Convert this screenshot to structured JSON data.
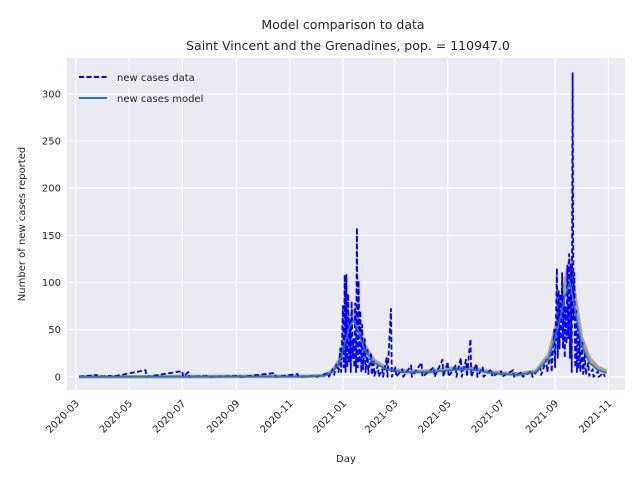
{
  "chart_data": {
    "type": "line",
    "title": "Model comparison to data",
    "subtitle": "Saint Vincent and the Grenadines, pop. = 110947.0",
    "xlabel": "Day",
    "ylabel": "Number of new cases reported",
    "xlim": [
      "2020-02-20",
      "2021-11-20"
    ],
    "ylim": [
      -14,
      338
    ],
    "grid": true,
    "legend_position": "top-left",
    "x_ticks": [
      "2020-03",
      "2020-05",
      "2020-07",
      "2020-09",
      "2020-11",
      "2021-01",
      "2021-03",
      "2021-05",
      "2021-07",
      "2021-09",
      "2021-11"
    ],
    "y_ticks": [
      0,
      50,
      100,
      150,
      200,
      250,
      300
    ],
    "series": [
      {
        "name": "new cases data",
        "style": "dashed",
        "color": "#0000ff",
        "points": [
          [
            "2020-03-05",
            0
          ],
          [
            "2020-03-25",
            2
          ],
          [
            "2020-03-26",
            0
          ],
          [
            "2020-04-10",
            1
          ],
          [
            "2020-04-11",
            0
          ],
          [
            "2020-05-20",
            7
          ],
          [
            "2020-05-21",
            0
          ],
          [
            "2020-07-01",
            6
          ],
          [
            "2020-07-02",
            0
          ],
          [
            "2020-07-08",
            5
          ],
          [
            "2020-07-09",
            0
          ],
          [
            "2020-08-01",
            1
          ],
          [
            "2020-08-02",
            0
          ],
          [
            "2020-09-05",
            1
          ],
          [
            "2020-09-06",
            0
          ],
          [
            "2020-10-15",
            4
          ],
          [
            "2020-10-16",
            0
          ],
          [
            "2020-11-10",
            3
          ],
          [
            "2020-11-11",
            0
          ],
          [
            "2020-12-01",
            1
          ],
          [
            "2020-12-02",
            0
          ],
          [
            "2020-12-15",
            4
          ],
          [
            "2020-12-16",
            0
          ],
          [
            "2020-12-20",
            8
          ],
          [
            "2020-12-22",
            2
          ],
          [
            "2020-12-25",
            15
          ],
          [
            "2020-12-27",
            5
          ],
          [
            "2020-12-29",
            30
          ],
          [
            "2020-12-30",
            5
          ],
          [
            "2021-01-01",
            75
          ],
          [
            "2021-01-02",
            10
          ],
          [
            "2021-01-03",
            108
          ],
          [
            "2021-01-04",
            5
          ],
          [
            "2021-01-05",
            108
          ],
          [
            "2021-01-06",
            10
          ],
          [
            "2021-01-07",
            88
          ],
          [
            "2021-01-08",
            15
          ],
          [
            "2021-01-09",
            60
          ],
          [
            "2021-01-10",
            5
          ],
          [
            "2021-01-11",
            80
          ],
          [
            "2021-01-12",
            20
          ],
          [
            "2021-01-13",
            40
          ],
          [
            "2021-01-14",
            10
          ],
          [
            "2021-01-15",
            78
          ],
          [
            "2021-01-16",
            5
          ],
          [
            "2021-01-17",
            158
          ],
          [
            "2021-01-18",
            10
          ],
          [
            "2021-01-19",
            102
          ],
          [
            "2021-01-20",
            15
          ],
          [
            "2021-01-21",
            70
          ],
          [
            "2021-01-22",
            5
          ],
          [
            "2021-01-23",
            55
          ],
          [
            "2021-01-24",
            8
          ],
          [
            "2021-01-26",
            40
          ],
          [
            "2021-01-27",
            5
          ],
          [
            "2021-01-29",
            30
          ],
          [
            "2021-01-30",
            3
          ],
          [
            "2021-02-02",
            25
          ],
          [
            "2021-02-03",
            2
          ],
          [
            "2021-02-05",
            18
          ],
          [
            "2021-02-06",
            1
          ],
          [
            "2021-02-10",
            12
          ],
          [
            "2021-02-11",
            0
          ],
          [
            "2021-02-15",
            8
          ],
          [
            "2021-02-16",
            0
          ],
          [
            "2021-02-20",
            20
          ],
          [
            "2021-02-21",
            0
          ],
          [
            "2021-02-25",
            72
          ],
          [
            "2021-02-26",
            0
          ],
          [
            "2021-03-02",
            10
          ],
          [
            "2021-03-03",
            0
          ],
          [
            "2021-03-10",
            8
          ],
          [
            "2021-03-11",
            0
          ],
          [
            "2021-03-20",
            12
          ],
          [
            "2021-03-21",
            0
          ],
          [
            "2021-04-01",
            15
          ],
          [
            "2021-04-02",
            0
          ],
          [
            "2021-04-15",
            10
          ],
          [
            "2021-04-16",
            0
          ],
          [
            "2021-04-25",
            18
          ],
          [
            "2021-04-26",
            0
          ],
          [
            "2021-05-01",
            16
          ],
          [
            "2021-05-02",
            0
          ],
          [
            "2021-05-10",
            12
          ],
          [
            "2021-05-11",
            0
          ],
          [
            "2021-05-16",
            20
          ],
          [
            "2021-05-17",
            0
          ],
          [
            "2021-05-22",
            18
          ],
          [
            "2021-05-23",
            0
          ],
          [
            "2021-05-27",
            40
          ],
          [
            "2021-05-28",
            0
          ],
          [
            "2021-06-03",
            14
          ],
          [
            "2021-06-04",
            0
          ],
          [
            "2021-06-10",
            10
          ],
          [
            "2021-06-11",
            0
          ],
          [
            "2021-06-20",
            8
          ],
          [
            "2021-06-21",
            0
          ],
          [
            "2021-07-01",
            6
          ],
          [
            "2021-07-02",
            0
          ],
          [
            "2021-07-15",
            7
          ],
          [
            "2021-07-16",
            0
          ],
          [
            "2021-07-25",
            5
          ],
          [
            "2021-07-26",
            0
          ],
          [
            "2021-08-05",
            6
          ],
          [
            "2021-08-06",
            0
          ],
          [
            "2021-08-15",
            10
          ],
          [
            "2021-08-16",
            2
          ],
          [
            "2021-08-22",
            18
          ],
          [
            "2021-08-23",
            5
          ],
          [
            "2021-08-27",
            28
          ],
          [
            "2021-08-28",
            5
          ],
          [
            "2021-08-31",
            50
          ],
          [
            "2021-09-01",
            10
          ],
          [
            "2021-09-03",
            115
          ],
          [
            "2021-09-04",
            20
          ],
          [
            "2021-09-05",
            92
          ],
          [
            "2021-09-06",
            30
          ],
          [
            "2021-09-07",
            88
          ],
          [
            "2021-09-08",
            40
          ],
          [
            "2021-09-09",
            110
          ],
          [
            "2021-09-10",
            30
          ],
          [
            "2021-09-11",
            85
          ],
          [
            "2021-09-12",
            20
          ],
          [
            "2021-09-13",
            75
          ],
          [
            "2021-09-14",
            35
          ],
          [
            "2021-09-15",
            118
          ],
          [
            "2021-09-16",
            40
          ],
          [
            "2021-09-17",
            130
          ],
          [
            "2021-09-18",
            20
          ],
          [
            "2021-09-19",
            120
          ],
          [
            "2021-09-20",
            5
          ],
          [
            "2021-09-21",
            322
          ],
          [
            "2021-09-22",
            60
          ],
          [
            "2021-09-23",
            110
          ],
          [
            "2021-09-24",
            10
          ],
          [
            "2021-09-25",
            70
          ],
          [
            "2021-09-26",
            5
          ],
          [
            "2021-09-27",
            55
          ],
          [
            "2021-09-28",
            8
          ],
          [
            "2021-09-29",
            42
          ],
          [
            "2021-09-30",
            5
          ],
          [
            "2021-10-02",
            38
          ],
          [
            "2021-10-03",
            3
          ],
          [
            "2021-10-05",
            25
          ],
          [
            "2021-10-06",
            2
          ],
          [
            "2021-10-09",
            15
          ],
          [
            "2021-10-10",
            1
          ],
          [
            "2021-10-14",
            8
          ],
          [
            "2021-10-15",
            0
          ],
          [
            "2021-10-20",
            6
          ],
          [
            "2021-10-21",
            0
          ],
          [
            "2021-10-26",
            4
          ],
          [
            "2021-10-28",
            0
          ]
        ]
      },
      {
        "name": "new cases model",
        "style": "solid",
        "color": "#1f77b4",
        "points": [
          [
            "2020-03-05",
            0
          ],
          [
            "2020-11-20",
            0.5
          ],
          [
            "2020-12-10",
            1
          ],
          [
            "2020-12-20",
            5
          ],
          [
            "2020-12-28",
            15
          ],
          [
            "2021-01-03",
            35
          ],
          [
            "2021-01-08",
            52
          ],
          [
            "2021-01-13",
            60
          ],
          [
            "2021-01-18",
            50
          ],
          [
            "2021-01-25",
            30
          ],
          [
            "2021-02-05",
            15
          ],
          [
            "2021-02-20",
            8
          ],
          [
            "2021-03-10",
            5
          ],
          [
            "2021-04-10",
            5
          ],
          [
            "2021-05-05",
            7
          ],
          [
            "2021-05-25",
            8
          ],
          [
            "2021-06-20",
            4
          ],
          [
            "2021-07-20",
            2
          ],
          [
            "2021-08-10",
            5
          ],
          [
            "2021-08-25",
            20
          ],
          [
            "2021-09-05",
            55
          ],
          [
            "2021-09-12",
            85
          ],
          [
            "2021-09-18",
            100
          ],
          [
            "2021-09-23",
            75
          ],
          [
            "2021-10-01",
            35
          ],
          [
            "2021-10-10",
            15
          ],
          [
            "2021-10-20",
            7
          ],
          [
            "2021-10-30",
            4
          ]
        ]
      },
      {
        "style": "band",
        "color": "#c4776f",
        "points": [
          [
            "2020-03-05",
            0
          ],
          [
            "2020-11-20",
            0.5
          ],
          [
            "2020-12-10",
            1.5
          ],
          [
            "2020-12-20",
            6
          ],
          [
            "2020-12-28",
            18
          ],
          [
            "2021-01-03",
            42
          ],
          [
            "2021-01-08",
            62
          ],
          [
            "2021-01-13",
            70
          ],
          [
            "2021-01-18",
            58
          ],
          [
            "2021-01-25",
            35
          ],
          [
            "2021-02-05",
            18
          ],
          [
            "2021-02-20",
            9
          ],
          [
            "2021-03-10",
            6
          ],
          [
            "2021-04-10",
            6
          ],
          [
            "2021-05-05",
            9
          ],
          [
            "2021-05-25",
            10
          ],
          [
            "2021-06-20",
            5
          ],
          [
            "2021-07-20",
            3
          ],
          [
            "2021-08-10",
            6
          ],
          [
            "2021-08-25",
            24
          ],
          [
            "2021-09-05",
            65
          ],
          [
            "2021-09-12",
            100
          ],
          [
            "2021-09-18",
            125
          ],
          [
            "2021-09-23",
            90
          ],
          [
            "2021-10-01",
            42
          ],
          [
            "2021-10-10",
            20
          ],
          [
            "2021-10-20",
            10
          ],
          [
            "2021-10-30",
            6
          ]
        ]
      },
      {
        "style": "band",
        "color": "#8fa88a",
        "points": [
          [
            "2020-03-05",
            0
          ],
          [
            "2020-11-20",
            0.5
          ],
          [
            "2020-12-10",
            1.2
          ],
          [
            "2020-12-20",
            5.5
          ],
          [
            "2020-12-28",
            16
          ],
          [
            "2021-01-03",
            38
          ],
          [
            "2021-01-08",
            56
          ],
          [
            "2021-01-13",
            64
          ],
          [
            "2021-01-18",
            54
          ],
          [
            "2021-01-25",
            33
          ],
          [
            "2021-02-05",
            17
          ],
          [
            "2021-02-20",
            8
          ],
          [
            "2021-03-10",
            5
          ],
          [
            "2021-04-10",
            5
          ],
          [
            "2021-05-05",
            8
          ],
          [
            "2021-05-25",
            9
          ],
          [
            "2021-06-20",
            4
          ],
          [
            "2021-07-20",
            2
          ],
          [
            "2021-08-10",
            5
          ],
          [
            "2021-08-25",
            22
          ],
          [
            "2021-09-05",
            60
          ],
          [
            "2021-09-12",
            92
          ],
          [
            "2021-09-18",
            112
          ],
          [
            "2021-09-23",
            82
          ],
          [
            "2021-10-01",
            38
          ],
          [
            "2021-10-10",
            17
          ],
          [
            "2021-10-20",
            8
          ],
          [
            "2021-10-30",
            5
          ]
        ]
      }
    ]
  }
}
